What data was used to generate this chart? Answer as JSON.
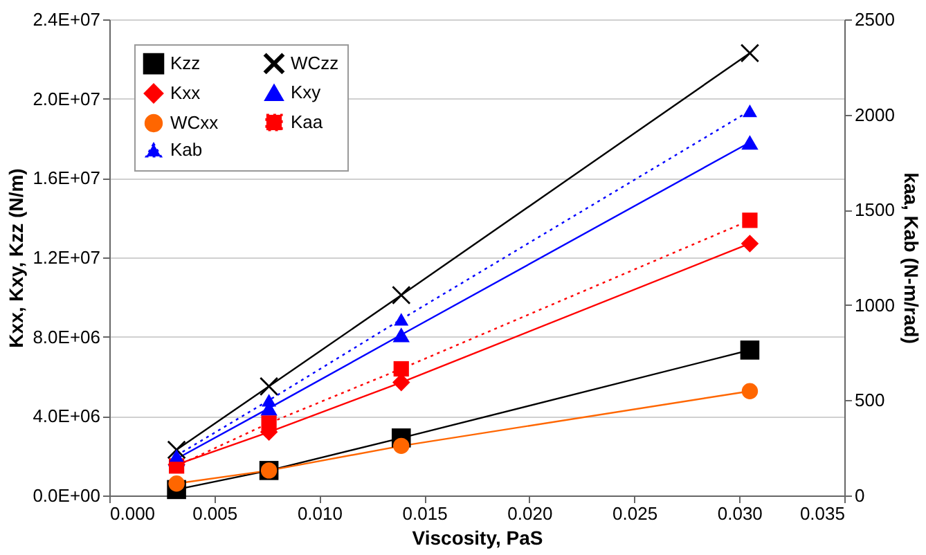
{
  "chart_data": {
    "type": "line",
    "xlabel": "Viscosity, PaS",
    "ylabel": "Kxx, Kxy, Kzz (N/m)",
    "y2label": "kaa, Kab (N-m/rad)",
    "x": [
      0.0032,
      0.0076,
      0.0139,
      0.0305
    ],
    "series": [
      {
        "name": "Kzz",
        "color": "#000000",
        "marker": "square",
        "line_style": "solid",
        "values": [
          300000,
          1260000,
          2900000,
          7330000
        ]
      },
      {
        "name": "WCzz",
        "color": "#000000",
        "marker": "cross",
        "line_style": "solid",
        "values": [
          2300000,
          5500000,
          10100000,
          22300000
        ]
      },
      {
        "name": "Kxx",
        "color": "#ff0000",
        "marker": "diamond",
        "line_style": "solid",
        "values": [
          1560000,
          3200000,
          5700000,
          12700000
        ]
      },
      {
        "name": "Kxy",
        "color": "#0000ff",
        "marker": "triangle",
        "line_style": "solid",
        "values": [
          1850000,
          4400000,
          8100000,
          17800000
        ]
      },
      {
        "name": "WCxx",
        "color": "#ff6600",
        "marker": "circle",
        "line_style": "solid",
        "values": [
          600000,
          1260000,
          2500000,
          5260000
        ]
      },
      {
        "name": "Kaa",
        "color": "#ff0000",
        "marker": "square",
        "line_style": "dotted",
        "axis": "y2",
        "values": [
          155,
          380,
          665,
          1445
        ]
      },
      {
        "name": "Kab",
        "color": "#0000ff",
        "marker": "triangle",
        "line_style": "dotted",
        "axis": "y2",
        "values": [
          210,
          500,
          925,
          2020
        ]
      }
    ],
    "xlim": [
      0,
      0.035
    ],
    "xticks": [
      {
        "value": 0,
        "label": "0.000"
      },
      {
        "value": 0.005,
        "label": "0.005"
      },
      {
        "value": 0.01,
        "label": "0.010"
      },
      {
        "value": 0.015,
        "label": "0.015"
      },
      {
        "value": 0.02,
        "label": "0.020"
      },
      {
        "value": 0.025,
        "label": "0.025"
      },
      {
        "value": 0.03,
        "label": "0.030"
      },
      {
        "value": 0.035,
        "label": "0.035"
      }
    ],
    "ylim": [
      0,
      24000000
    ],
    "yticks": [
      {
        "value": 0,
        "label": "0.0E+00"
      },
      {
        "value": 4000000,
        "label": "4.0E+06"
      },
      {
        "value": 8000000,
        "label": "8.0E+06"
      },
      {
        "value": 12000000,
        "label": "1.2E+07"
      },
      {
        "value": 16000000,
        "label": "1.6E+07"
      },
      {
        "value": 20000000,
        "label": "2.0E+07"
      },
      {
        "value": 24000000,
        "label": "2.4E+07"
      }
    ],
    "y2lim": [
      0,
      2500
    ],
    "y2ticks": [
      0,
      500,
      1000,
      1500,
      2000,
      2500
    ],
    "grid": "y",
    "legend": "top left"
  }
}
